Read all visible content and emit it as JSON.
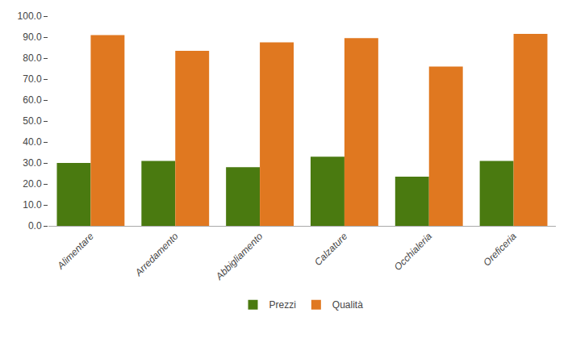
{
  "chart_data": {
    "type": "bar",
    "categories": [
      "Alimentare",
      "Arredamento",
      "Abbigliamento",
      "Calzature",
      "Occhialeria",
      "Oreficeria"
    ],
    "series": [
      {
        "name": "Prezzi",
        "color": "#4a7a10",
        "values": [
          30.0,
          31.0,
          28.0,
          33.0,
          23.5,
          31.0
        ]
      },
      {
        "name": "Qualità",
        "color": "#e07820",
        "values": [
          91.0,
          83.5,
          87.5,
          89.5,
          76.0,
          91.5
        ]
      }
    ],
    "ylim": [
      0,
      100
    ],
    "yticks": [
      {
        "value": 0,
        "label": "0.0"
      },
      {
        "value": 10,
        "label": "10.0"
      },
      {
        "value": 20,
        "label": "20.0"
      },
      {
        "value": 30,
        "label": "30.0"
      },
      {
        "value": 40,
        "label": "40.0"
      },
      {
        "value": 50,
        "label": "50.0"
      },
      {
        "value": 60,
        "label": "60.0"
      },
      {
        "value": 70,
        "label": "70.0"
      },
      {
        "value": 80,
        "label": "80.0"
      },
      {
        "value": 90,
        "label": "90.0"
      },
      {
        "value": 100,
        "label": "100.0"
      }
    ],
    "grid": false,
    "legend": "bottom"
  }
}
